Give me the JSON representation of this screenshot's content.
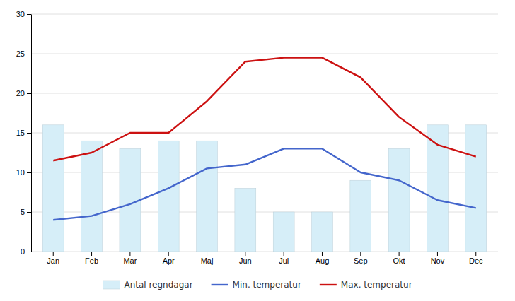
{
  "chart_data": {
    "type": "bar",
    "categories": [
      "Jan",
      "Feb",
      "Mar",
      "Apr",
      "Maj",
      "Jun",
      "Jul",
      "Aug",
      "Sep",
      "Okt",
      "Nov",
      "Dec"
    ],
    "series": [
      {
        "name": "Antal regndagar",
        "type": "bar",
        "color": "#d6eef8",
        "values": [
          16,
          14,
          13,
          14,
          14,
          8,
          5,
          5,
          9,
          13,
          16,
          16
        ]
      },
      {
        "name": "Min. temperatur",
        "type": "line",
        "color": "#4466cc",
        "values": [
          4,
          4.5,
          6,
          8,
          10.5,
          11,
          13,
          13,
          10,
          9,
          6.5,
          5.5
        ]
      },
      {
        "name": "Max. temperatur",
        "type": "line",
        "color": "#cc1111",
        "values": [
          11.5,
          12.5,
          15,
          15,
          19,
          24,
          24.5,
          24.5,
          22,
          17,
          13.5,
          12
        ]
      }
    ],
    "ylim": [
      0,
      30
    ],
    "yticks": [
      0,
      5,
      10,
      15,
      20,
      25,
      30
    ],
    "grid": true,
    "legend": "bottom"
  }
}
